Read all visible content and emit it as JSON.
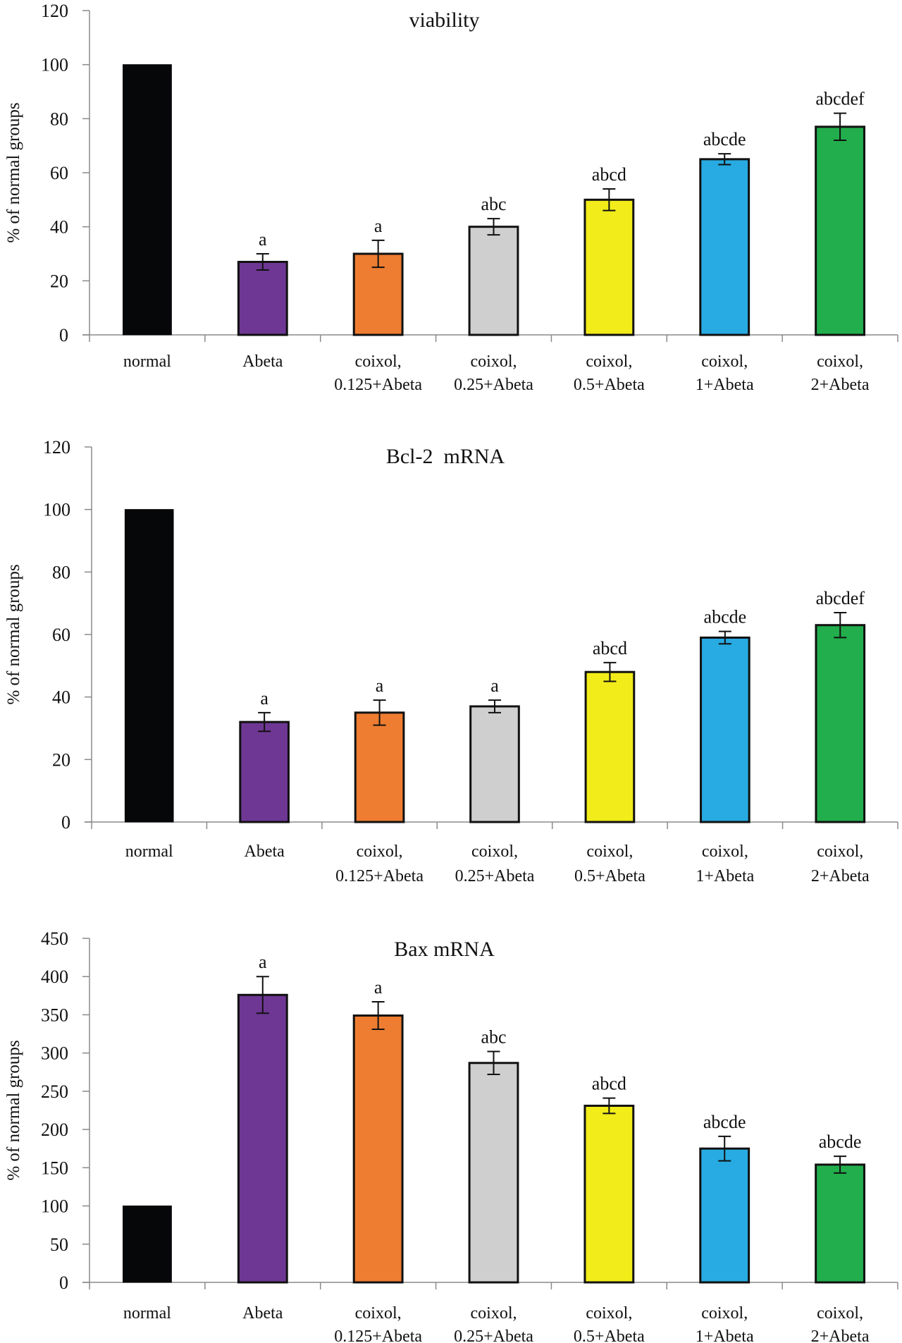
{
  "figure": {
    "panels_count": 3
  },
  "chart_data": [
    {
      "type": "bar",
      "title": "viability",
      "xlabel": "",
      "ylabel": "% of normal groups",
      "ylim": [
        0,
        120
      ],
      "yticks": [
        0,
        20,
        40,
        60,
        80,
        100,
        120
      ],
      "grid": false,
      "legend": "none",
      "categories": [
        [
          "normal"
        ],
        [
          "Abeta"
        ],
        [
          "coixol,",
          "0.125+Abeta"
        ],
        [
          "coixol,",
          "0.25+Abeta"
        ],
        [
          "coixol,",
          "0.5+Abeta"
        ],
        [
          "coixol,",
          "1+Abeta"
        ],
        [
          "coixol,",
          "2+Abeta"
        ]
      ],
      "values": [
        100,
        27,
        30,
        40,
        50,
        65,
        77
      ],
      "errors": [
        0,
        3,
        5,
        3,
        4,
        2,
        5
      ],
      "annotations": [
        "",
        "a",
        "a",
        "abc",
        "abcd",
        "abcde",
        "abcdef"
      ],
      "colors": [
        "#060708",
        "#6e3794",
        "#ee7d31",
        "#cfcfcf",
        "#f2ec1a",
        "#28abe2",
        "#22ae4c"
      ]
    },
    {
      "type": "bar",
      "title": "Bcl-2  mRNA",
      "xlabel": "",
      "ylabel": "% of normal groups",
      "ylim": [
        0,
        120
      ],
      "yticks": [
        0,
        20,
        40,
        60,
        80,
        100,
        120
      ],
      "grid": false,
      "legend": "none",
      "categories": [
        [
          "normal"
        ],
        [
          "Abeta"
        ],
        [
          "coixol,",
          "0.125+Abeta"
        ],
        [
          "coixol,",
          "0.25+Abeta"
        ],
        [
          "coixol,",
          "0.5+Abeta"
        ],
        [
          "coixol,",
          "1+Abeta"
        ],
        [
          "coixol,",
          "2+Abeta"
        ]
      ],
      "values": [
        100,
        32,
        35,
        37,
        48,
        59,
        63
      ],
      "errors": [
        0,
        3,
        4,
        2,
        3,
        2,
        4
      ],
      "annotations": [
        "",
        "a",
        "a",
        "a",
        "abcd",
        "abcde",
        "abcdef"
      ],
      "colors": [
        "#060708",
        "#6e3794",
        "#ee7d31",
        "#cfcfcf",
        "#f2ec1a",
        "#28abe2",
        "#22ae4c"
      ]
    },
    {
      "type": "bar",
      "title": "Bax mRNA",
      "xlabel": "",
      "ylabel": "% of normal groups",
      "ylim": [
        0,
        450
      ],
      "yticks": [
        0,
        50,
        100,
        150,
        200,
        250,
        300,
        350,
        400,
        450
      ],
      "grid": false,
      "legend": "none",
      "categories": [
        [
          "normal"
        ],
        [
          "Abeta"
        ],
        [
          "coixol,",
          "0.125+Abeta"
        ],
        [
          "coixol,",
          "0.25+Abeta"
        ],
        [
          "coixol,",
          "0.5+Abeta"
        ],
        [
          "coixol,",
          "1+Abeta"
        ],
        [
          "coixol,",
          "2+Abeta"
        ]
      ],
      "values": [
        100,
        376,
        349,
        287,
        231,
        175,
        154
      ],
      "errors": [
        0,
        24,
        18,
        15,
        10,
        16,
        11
      ],
      "annotations": [
        "",
        "a",
        "a",
        "abc",
        "abcd",
        "abcde",
        "abcde"
      ],
      "colors": [
        "#060708",
        "#6e3794",
        "#ee7d31",
        "#cfcfcf",
        "#f2ec1a",
        "#28abe2",
        "#22ae4c"
      ]
    }
  ]
}
